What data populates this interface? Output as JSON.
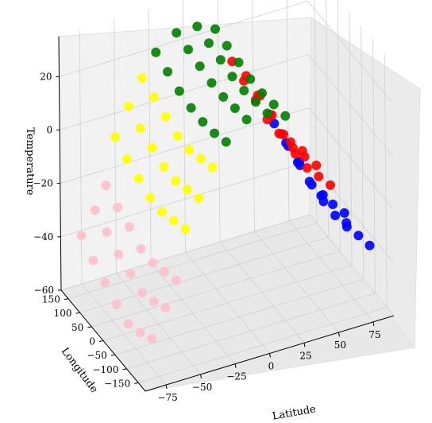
{
  "chart_data": {
    "type": "scatter",
    "projection": "3d",
    "title": "",
    "xlabel": "Latitude",
    "ylabel": "Longitude",
    "zlabel": "Temperature",
    "xlim": [
      -90,
      90
    ],
    "ylim": [
      -180,
      180
    ],
    "zlim": [
      -60,
      35
    ],
    "x_ticks": [
      -75,
      -50,
      -25,
      0,
      25,
      50,
      75
    ],
    "y_ticks": [
      150,
      100,
      50,
      0,
      -50,
      -100,
      -150
    ],
    "z_ticks": [
      20,
      0,
      -20,
      -40,
      -60
    ],
    "grid": true,
    "colors": {
      "pink": "#ffc0cb",
      "yellow": "#ffff00",
      "green": "#008000",
      "red": "#ff0000",
      "blue": "#0000ff",
      "pane": "#f2f2f2",
      "grid": "#d0d0d0"
    },
    "series": [
      {
        "color": "pink",
        "points": [
          [
            -80,
            150,
            -38
          ],
          [
            -80,
            100,
            -42
          ],
          [
            -80,
            50,
            -45
          ],
          [
            -80,
            0,
            -48
          ],
          [
            -80,
            -50,
            -50
          ],
          [
            -80,
            -100,
            -48
          ],
          [
            -80,
            -150,
            -45
          ],
          [
            -70,
            150,
            -30
          ],
          [
            -70,
            100,
            -33
          ],
          [
            -70,
            50,
            -36
          ],
          [
            -70,
            0,
            -38
          ],
          [
            -70,
            -50,
            -40
          ],
          [
            -70,
            -100,
            -38
          ],
          [
            -70,
            -150,
            -35
          ],
          [
            -62,
            150,
            -22
          ],
          [
            -62,
            100,
            -25
          ],
          [
            -62,
            50,
            -27
          ],
          [
            -62,
            0,
            -30
          ],
          [
            -62,
            -50,
            -30
          ],
          [
            -62,
            -100,
            -28
          ],
          [
            -62,
            -150,
            -26
          ]
        ]
      },
      {
        "color": "yellow",
        "points": [
          [
            -55,
            150,
            -5
          ],
          [
            -55,
            100,
            -8
          ],
          [
            -55,
            50,
            -10
          ],
          [
            -55,
            0,
            -12
          ],
          [
            -55,
            -50,
            -12
          ],
          [
            -55,
            -100,
            -10
          ],
          [
            -55,
            -150,
            -8
          ],
          [
            -45,
            150,
            5
          ],
          [
            -45,
            100,
            2
          ],
          [
            -45,
            50,
            0
          ],
          [
            -45,
            0,
            -2
          ],
          [
            -45,
            -50,
            -2
          ],
          [
            -45,
            -100,
            0
          ],
          [
            -45,
            -150,
            2
          ],
          [
            -35,
            150,
            14
          ],
          [
            -35,
            100,
            12
          ],
          [
            -35,
            50,
            10
          ],
          [
            -35,
            0,
            8
          ],
          [
            -35,
            -50,
            8
          ],
          [
            -35,
            -100,
            10
          ],
          [
            -35,
            -150,
            12
          ]
        ]
      },
      {
        "color": "green",
        "points": [
          [
            -25,
            150,
            22
          ],
          [
            -25,
            100,
            20
          ],
          [
            -25,
            50,
            18
          ],
          [
            -25,
            0,
            17
          ],
          [
            -25,
            -50,
            17
          ],
          [
            -25,
            -100,
            18
          ],
          [
            -25,
            -150,
            20
          ],
          [
            -10,
            150,
            27
          ],
          [
            -10,
            100,
            26
          ],
          [
            -10,
            50,
            25
          ],
          [
            -10,
            0,
            24
          ],
          [
            -10,
            -50,
            24
          ],
          [
            -10,
            -100,
            25
          ],
          [
            -10,
            -150,
            26
          ],
          [
            5,
            150,
            27
          ],
          [
            5,
            100,
            26
          ],
          [
            5,
            50,
            25
          ],
          [
            5,
            0,
            24
          ],
          [
            5,
            -50,
            24
          ],
          [
            5,
            -100,
            25
          ],
          [
            5,
            -150,
            26
          ],
          [
            18,
            150,
            24
          ],
          [
            18,
            100,
            23
          ],
          [
            18,
            50,
            22
          ],
          [
            18,
            0,
            21
          ],
          [
            18,
            -50,
            21
          ],
          [
            18,
            -100,
            22
          ],
          [
            18,
            -150,
            23
          ]
        ]
      },
      {
        "color": "red",
        "points": [
          [
            30,
            150,
            10
          ],
          [
            30,
            100,
            8
          ],
          [
            30,
            50,
            6
          ],
          [
            30,
            0,
            4
          ],
          [
            30,
            -50,
            4
          ],
          [
            30,
            -100,
            6
          ],
          [
            30,
            -150,
            8
          ],
          [
            40,
            150,
            3
          ],
          [
            40,
            100,
            1
          ],
          [
            40,
            50,
            -1
          ],
          [
            40,
            0,
            -3
          ],
          [
            40,
            -50,
            -3
          ],
          [
            40,
            -100,
            -1
          ],
          [
            40,
            -150,
            1
          ],
          [
            50,
            150,
            -6
          ],
          [
            50,
            100,
            -8
          ],
          [
            50,
            50,
            -10
          ],
          [
            50,
            0,
            -12
          ],
          [
            50,
            -50,
            -12
          ],
          [
            50,
            -100,
            -10
          ],
          [
            50,
            -150,
            -8
          ]
        ]
      },
      {
        "color": "blue",
        "points": [
          [
            60,
            150,
            -18
          ],
          [
            60,
            100,
            -20
          ],
          [
            60,
            50,
            -22
          ],
          [
            60,
            0,
            -24
          ],
          [
            60,
            -50,
            -24
          ],
          [
            60,
            -100,
            -22
          ],
          [
            60,
            -150,
            -20
          ],
          [
            70,
            150,
            -28
          ],
          [
            70,
            100,
            -30
          ],
          [
            70,
            50,
            -32
          ],
          [
            70,
            0,
            -33
          ],
          [
            70,
            -50,
            -33
          ],
          [
            70,
            -100,
            -32
          ],
          [
            70,
            -150,
            -30
          ],
          [
            78,
            150,
            -35
          ],
          [
            78,
            50,
            -37
          ],
          [
            78,
            -50,
            -37
          ],
          [
            78,
            -150,
            -35
          ]
        ]
      }
    ]
  }
}
